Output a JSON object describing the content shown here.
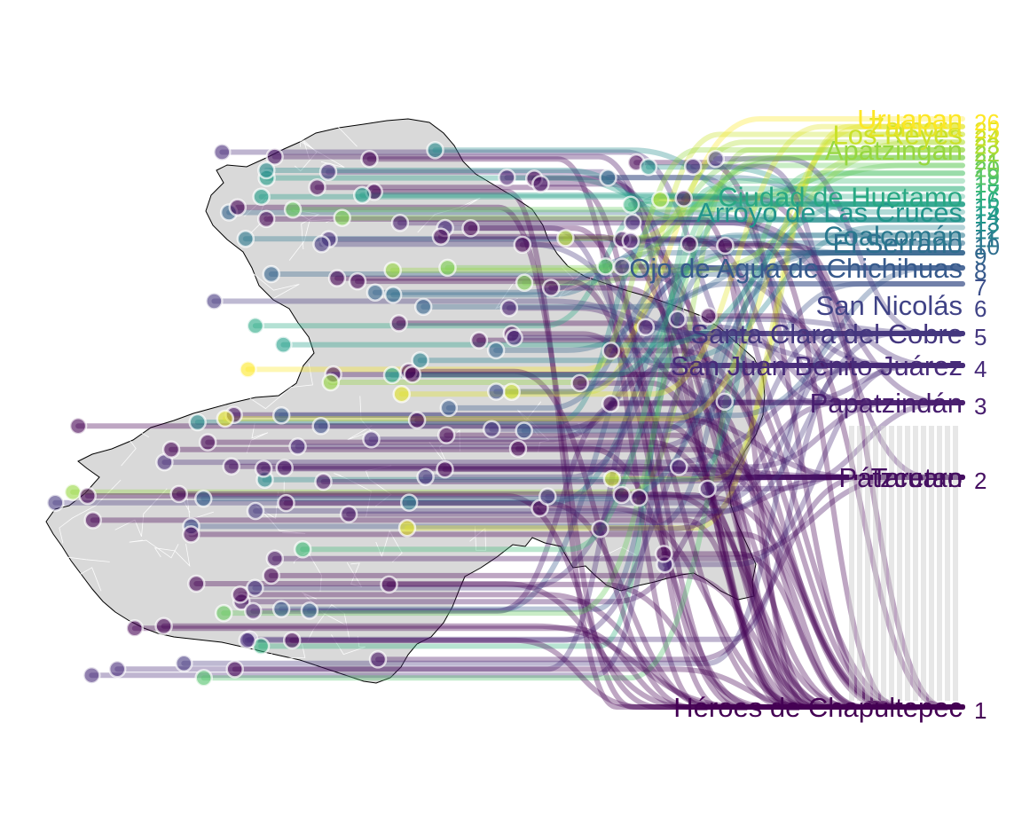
{
  "chart_data": {
    "type": "bump",
    "title": "",
    "xlabel": "",
    "ylabel": "",
    "color_scale": "viridis",
    "colors": {
      "map_fill": "#d9d9d9",
      "map_stroke": "#000000",
      "municipality_stroke": "#ffffff",
      "rank_1": "#440154",
      "rank_2": "#2a788e",
      "rank_3": "#25858e",
      "rank_4": "#1f988b",
      "rank_5": "#22a884",
      "rank_10": "#5ec962",
      "rank_20": "#bddf26",
      "rank_26": "#fde725"
    },
    "rank_labels": [
      "1",
      "2",
      "3",
      "4",
      "5",
      "6",
      "7",
      "8",
      "9",
      "10",
      "11",
      "12",
      "13",
      "14",
      "15",
      "16",
      "17",
      "18",
      "19",
      "20",
      "21",
      "22",
      "23",
      "24",
      "25",
      "26"
    ],
    "visible_place_labels": [
      {
        "text": "Héroes de Chapultepec",
        "rank": 1
      },
      {
        "text": "Taretan",
        "rank": 2
      },
      {
        "text": "Pátzcuaro",
        "rank": 2
      },
      {
        "text": "Papatzindán",
        "rank": 3
      },
      {
        "text": "San Juan Benito Juárez",
        "rank": 4
      },
      {
        "text": "Santa Clara del Cobre",
        "rank": 5
      },
      {
        "text": "San Nicolás",
        "rank": 6
      },
      {
        "text": "Ojo de Agua de Chichihuas",
        "rank": 8
      },
      {
        "text": "El Serrano",
        "rank": 10
      },
      {
        "text": "Coalcomán",
        "rank": 11
      },
      {
        "text": "Arroyo de Las Cruces",
        "rank": 14
      },
      {
        "text": "Ciudad de Huetamo",
        "rank": 16
      },
      {
        "text": "Apatzingán",
        "rank": 22
      },
      {
        "text": "Los Reyes",
        "rank": 24
      },
      {
        "text": "Zamora",
        "rank": 25
      },
      {
        "text": "Uruapan",
        "rank": 26
      }
    ]
  }
}
